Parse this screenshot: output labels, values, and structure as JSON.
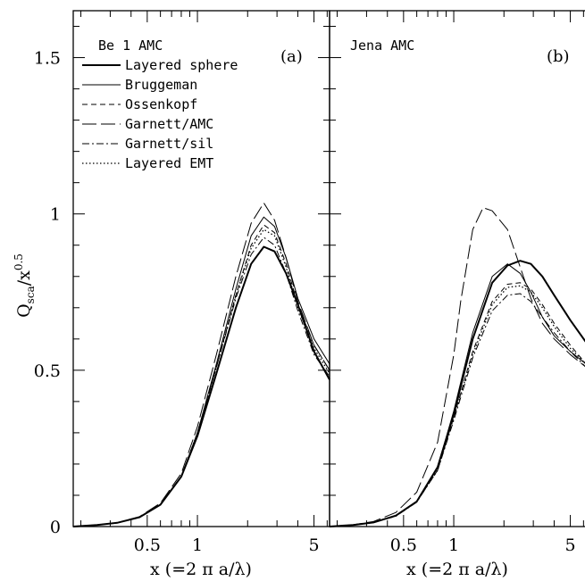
{
  "chart_data": [
    {
      "type": "line",
      "panel_tag": "(a)",
      "panel_title": "Be 1 AMC",
      "xlabel": "x (=2 π a/λ)",
      "ylabel": "Q",
      "ylabel_sub": "sca",
      "ylabel_tail": "/x",
      "ylabel_sup": "0.5",
      "xscale": "log",
      "xlim": [
        0.18,
        6.2
      ],
      "ylim": [
        0,
        1.65
      ],
      "xticks": [
        0.5,
        1,
        5
      ],
      "xtick_labels": [
        "0.5",
        "1",
        "5"
      ],
      "yticks": [
        0,
        0.5,
        1,
        1.5
      ],
      "ytick_labels": [
        "0",
        "0.5",
        "1",
        "1.5"
      ],
      "legend_location": "upper-left",
      "series": [
        {
          "name": "Layered sphere",
          "style": "thick",
          "x": [
            0.18,
            0.25,
            0.33,
            0.45,
            0.6,
            0.8,
            1.0,
            1.3,
            1.7,
            2.1,
            2.5,
            2.9,
            3.4,
            4.0,
            5.0,
            6.2
          ],
          "y": [
            0.0,
            0.005,
            0.012,
            0.03,
            0.07,
            0.16,
            0.29,
            0.49,
            0.7,
            0.84,
            0.895,
            0.88,
            0.81,
            0.71,
            0.56,
            0.47
          ]
        },
        {
          "name": "Bruggeman",
          "style": "solid",
          "x": [
            0.18,
            0.25,
            0.33,
            0.45,
            0.6,
            0.8,
            1.0,
            1.3,
            1.7,
            2.1,
            2.5,
            2.9,
            3.4,
            4.0,
            5.0,
            6.2
          ],
          "y": [
            0.0,
            0.005,
            0.012,
            0.03,
            0.07,
            0.16,
            0.3,
            0.52,
            0.76,
            0.93,
            0.99,
            0.96,
            0.86,
            0.73,
            0.6,
            0.52
          ]
        },
        {
          "name": "Ossenkopf",
          "style": "short-dash",
          "x": [
            0.18,
            0.25,
            0.33,
            0.45,
            0.6,
            0.8,
            1.0,
            1.3,
            1.7,
            2.1,
            2.5,
            2.9,
            3.4,
            4.0,
            5.0,
            6.2
          ],
          "y": [
            0.0,
            0.005,
            0.012,
            0.03,
            0.07,
            0.16,
            0.3,
            0.51,
            0.74,
            0.9,
            0.965,
            0.94,
            0.84,
            0.71,
            0.58,
            0.5
          ]
        },
        {
          "name": "Garnett/AMC",
          "style": "long-dash",
          "x": [
            0.18,
            0.25,
            0.33,
            0.45,
            0.6,
            0.8,
            1.0,
            1.3,
            1.7,
            2.1,
            2.5,
            2.9,
            3.4,
            4.0,
            5.0,
            6.2
          ],
          "y": [
            0.0,
            0.005,
            0.012,
            0.032,
            0.075,
            0.17,
            0.32,
            0.55,
            0.8,
            0.97,
            1.035,
            0.98,
            0.86,
            0.72,
            0.58,
            0.5
          ]
        },
        {
          "name": "Garnett/sil",
          "style": "dash-dot",
          "x": [
            0.18,
            0.25,
            0.33,
            0.45,
            0.6,
            0.8,
            1.0,
            1.3,
            1.7,
            2.1,
            2.5,
            2.9,
            3.4,
            4.0,
            5.0,
            6.2
          ],
          "y": [
            0.0,
            0.005,
            0.012,
            0.03,
            0.07,
            0.16,
            0.3,
            0.51,
            0.73,
            0.87,
            0.925,
            0.9,
            0.81,
            0.69,
            0.55,
            0.48
          ]
        },
        {
          "name": "Layered EMT",
          "style": "dotted",
          "x": [
            0.18,
            0.25,
            0.33,
            0.45,
            0.6,
            0.8,
            1.0,
            1.3,
            1.7,
            2.1,
            2.5,
            2.9,
            3.4,
            4.0,
            5.0,
            6.2
          ],
          "y": [
            0.0,
            0.005,
            0.012,
            0.03,
            0.07,
            0.16,
            0.3,
            0.51,
            0.74,
            0.89,
            0.95,
            0.93,
            0.83,
            0.7,
            0.57,
            0.49
          ]
        }
      ]
    },
    {
      "type": "line",
      "panel_tag": "(b)",
      "panel_title": "Jena AMC",
      "xlabel": "x (=2 π a/λ)",
      "xscale": "log",
      "xlim": [
        0.18,
        6.2
      ],
      "ylim": [
        0,
        1.65
      ],
      "xticks": [
        0.5,
        1,
        5
      ],
      "xtick_labels": [
        "0.5",
        "1",
        "5"
      ],
      "yticks": [
        0,
        0.5,
        1,
        1.5
      ],
      "series": [
        {
          "name": "Layered sphere",
          "style": "thick",
          "x": [
            0.18,
            0.25,
            0.33,
            0.45,
            0.6,
            0.8,
            1.0,
            1.3,
            1.7,
            2.1,
            2.5,
            2.9,
            3.4,
            4.0,
            5.0,
            6.2
          ],
          "y": [
            0.0,
            0.005,
            0.013,
            0.035,
            0.08,
            0.19,
            0.36,
            0.6,
            0.78,
            0.835,
            0.85,
            0.84,
            0.8,
            0.74,
            0.66,
            0.59
          ]
        },
        {
          "name": "Bruggeman",
          "style": "solid",
          "x": [
            0.18,
            0.25,
            0.33,
            0.45,
            0.6,
            0.8,
            1.0,
            1.3,
            1.7,
            2.1,
            2.5,
            2.9,
            3.4,
            4.0,
            5.0,
            6.2
          ],
          "y": [
            0.0,
            0.005,
            0.013,
            0.035,
            0.08,
            0.19,
            0.37,
            0.62,
            0.8,
            0.84,
            0.81,
            0.75,
            0.67,
            0.61,
            0.56,
            0.52
          ]
        },
        {
          "name": "Ossenkopf",
          "style": "short-dash",
          "x": [
            0.18,
            0.25,
            0.33,
            0.45,
            0.6,
            0.8,
            1.0,
            1.3,
            1.7,
            2.1,
            2.5,
            2.9,
            3.4,
            4.0,
            5.0,
            6.2
          ],
          "y": [
            0.0,
            0.005,
            0.013,
            0.034,
            0.08,
            0.18,
            0.35,
            0.56,
            0.72,
            0.775,
            0.78,
            0.76,
            0.71,
            0.65,
            0.58,
            0.52
          ]
        },
        {
          "name": "Garnett/AMC",
          "style": "long-dash",
          "x": [
            0.18,
            0.25,
            0.33,
            0.45,
            0.6,
            0.8,
            1.0,
            1.1,
            1.3,
            1.5,
            1.7,
            2.1,
            2.5,
            2.9,
            3.4,
            4.0,
            5.0,
            6.2
          ],
          "y": [
            0.0,
            0.006,
            0.016,
            0.045,
            0.11,
            0.27,
            0.55,
            0.72,
            0.95,
            1.02,
            1.01,
            0.95,
            0.83,
            0.73,
            0.65,
            0.6,
            0.55,
            0.51
          ]
        },
        {
          "name": "Garnett/sil",
          "style": "dash-dot",
          "x": [
            0.18,
            0.25,
            0.33,
            0.45,
            0.6,
            0.8,
            1.0,
            1.3,
            1.7,
            2.1,
            2.5,
            2.9,
            3.4,
            4.0,
            5.0,
            6.2
          ],
          "y": [
            0.0,
            0.005,
            0.013,
            0.033,
            0.078,
            0.18,
            0.34,
            0.54,
            0.69,
            0.74,
            0.745,
            0.72,
            0.67,
            0.62,
            0.56,
            0.51
          ]
        },
        {
          "name": "Layered EMT",
          "style": "dotted",
          "x": [
            0.18,
            0.25,
            0.33,
            0.45,
            0.6,
            0.8,
            1.0,
            1.3,
            1.7,
            2.1,
            2.5,
            2.9,
            3.4,
            4.0,
            5.0,
            6.2
          ],
          "y": [
            0.0,
            0.005,
            0.013,
            0.034,
            0.08,
            0.18,
            0.35,
            0.55,
            0.71,
            0.765,
            0.77,
            0.75,
            0.7,
            0.64,
            0.57,
            0.52
          ]
        }
      ]
    }
  ]
}
